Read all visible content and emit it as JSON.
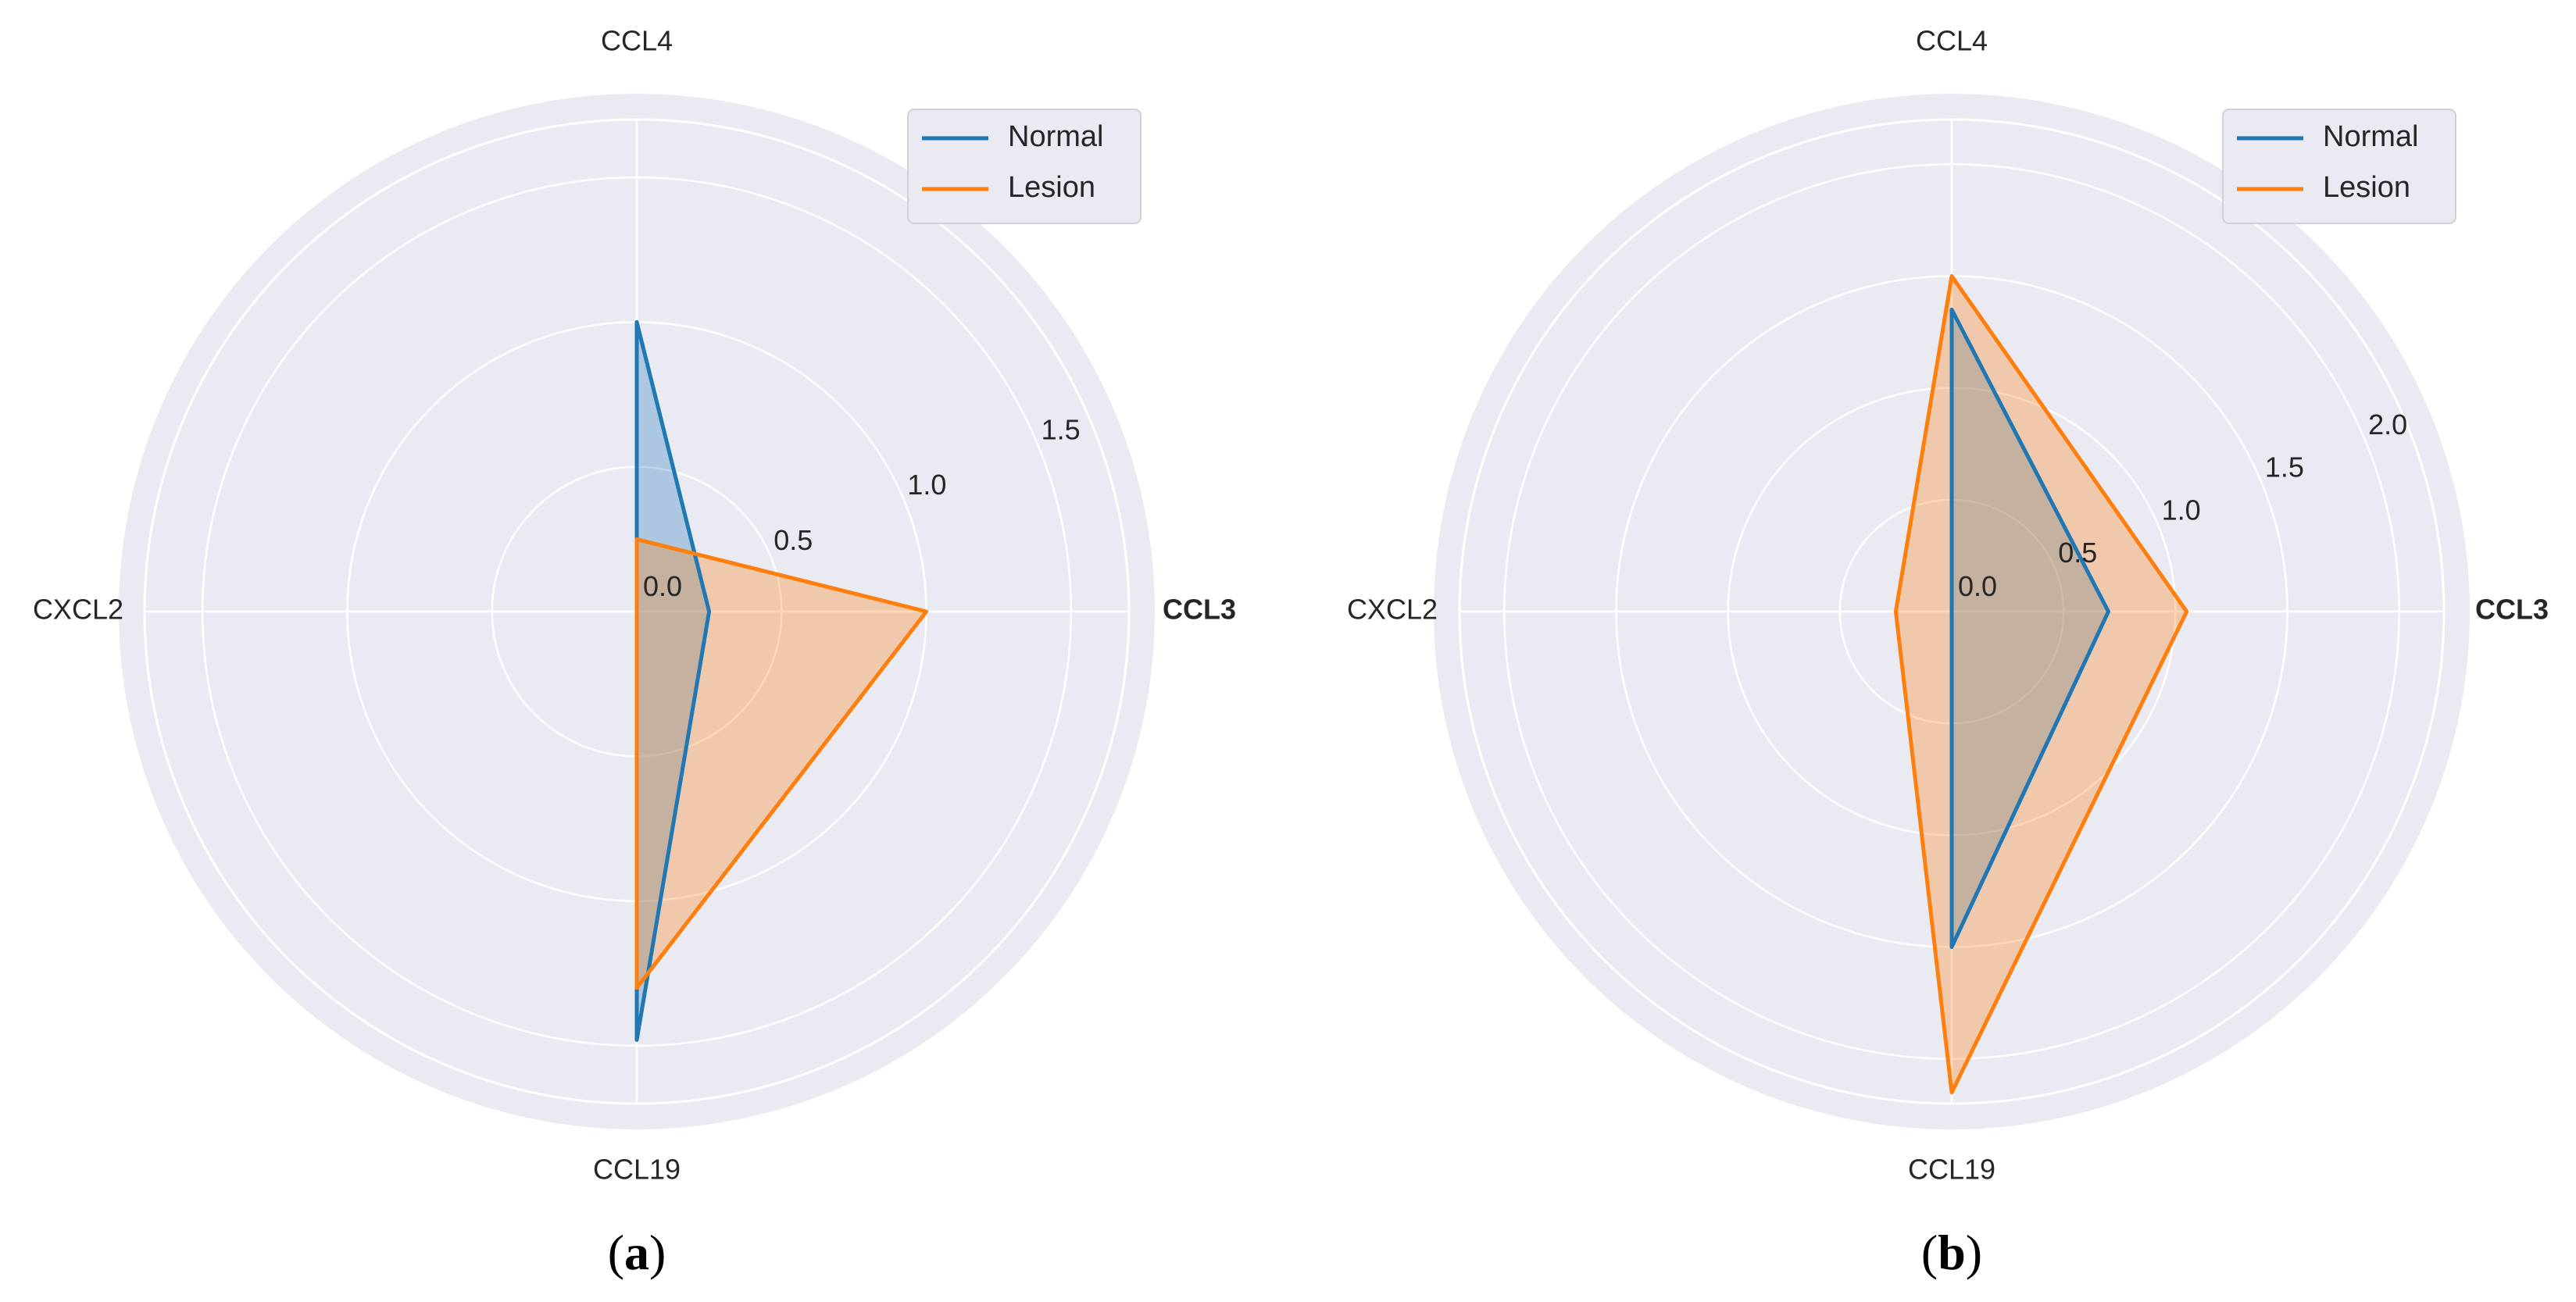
{
  "colors": {
    "background": "#eaeaf2",
    "grid": "#ffffff",
    "normal": "#1f77b4",
    "lesion": "#ff7f0e"
  },
  "chart_data": [
    {
      "type": "radar",
      "panel": "a",
      "caption_open": "(",
      "caption_letter": "a",
      "caption_close": ")",
      "categories": [
        "CCL3",
        "CCL4",
        "CXCL2",
        "CCL19"
      ],
      "rmax": 1.7,
      "rticks": [
        0.0,
        0.5,
        1.0,
        1.5
      ],
      "rtick_labels": [
        "0.0",
        "0.5",
        "1.0",
        "1.5"
      ],
      "bold_categories": [
        "CCL3"
      ],
      "legend": [
        "Normal",
        "Lesion"
      ],
      "legend_position": "upper-right",
      "series": [
        {
          "name": "Normal",
          "values": [
            0.25,
            1.0,
            0.0,
            1.48
          ],
          "color": "#1f77b4"
        },
        {
          "name": "Lesion",
          "values": [
            1.0,
            0.25,
            0.0,
            1.3
          ],
          "color": "#ff7f0e"
        }
      ]
    },
    {
      "type": "radar",
      "panel": "b",
      "caption_open": "(",
      "caption_letter": "b",
      "caption_close": ")",
      "categories": [
        "CCL3",
        "CCL4",
        "CXCL2",
        "CCL19"
      ],
      "rmax": 2.2,
      "rticks": [
        0.0,
        0.5,
        1.0,
        1.5,
        2.0
      ],
      "rtick_labels": [
        "0.0",
        "0.5",
        "1.0",
        "1.5",
        "2.0"
      ],
      "bold_categories": [
        "CCL3"
      ],
      "legend": [
        "Normal",
        "Lesion"
      ],
      "legend_position": "upper-right",
      "series": [
        {
          "name": "Normal",
          "values": [
            0.7,
            1.35,
            0.0,
            1.5
          ],
          "color": "#1f77b4"
        },
        {
          "name": "Lesion",
          "values": [
            1.05,
            1.5,
            0.25,
            2.15
          ],
          "color": "#ff7f0e"
        }
      ]
    }
  ]
}
